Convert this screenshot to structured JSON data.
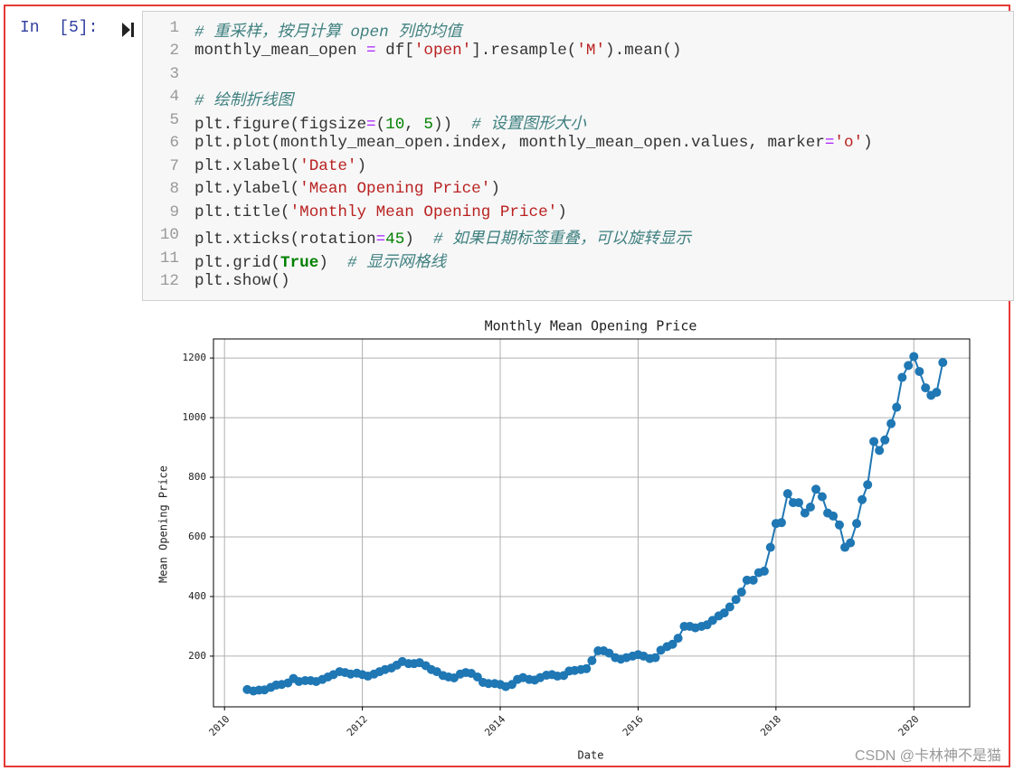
{
  "cell": {
    "prompt": "In  [5]:",
    "lines": [
      {
        "number": 1,
        "segments": [
          {
            "text": "# 重采样，按月计算 open 列的均值",
            "style": "comment"
          }
        ]
      },
      {
        "number": 2,
        "segments": [
          {
            "text": "monthly_mean_open ",
            "style": "plain"
          },
          {
            "text": "=",
            "style": "operator"
          },
          {
            "text": " df[",
            "style": "plain"
          },
          {
            "text": "'open'",
            "style": "string"
          },
          {
            "text": "].resample(",
            "style": "plain"
          },
          {
            "text": "'M'",
            "style": "string"
          },
          {
            "text": ").mean()",
            "style": "plain"
          }
        ]
      },
      {
        "number": 3,
        "segments": []
      },
      {
        "number": 4,
        "segments": [
          {
            "text": "# 绘制折线图",
            "style": "comment"
          }
        ]
      },
      {
        "number": 5,
        "segments": [
          {
            "text": "plt.figure(figsize",
            "style": "plain"
          },
          {
            "text": "=",
            "style": "operator"
          },
          {
            "text": "(",
            "style": "plain"
          },
          {
            "text": "10",
            "style": "number"
          },
          {
            "text": ", ",
            "style": "plain"
          },
          {
            "text": "5",
            "style": "number"
          },
          {
            "text": "))  ",
            "style": "plain"
          },
          {
            "text": "# 设置图形大小",
            "style": "comment"
          }
        ]
      },
      {
        "number": 6,
        "segments": [
          {
            "text": "plt.plot(monthly_mean_open.index, monthly_mean_open.values, marker",
            "style": "plain"
          },
          {
            "text": "=",
            "style": "operator"
          },
          {
            "text": "'o'",
            "style": "string"
          },
          {
            "text": ")",
            "style": "plain"
          }
        ]
      },
      {
        "number": 7,
        "segments": [
          {
            "text": "plt.xlabel(",
            "style": "plain"
          },
          {
            "text": "'Date'",
            "style": "string"
          },
          {
            "text": ")",
            "style": "plain"
          }
        ]
      },
      {
        "number": 8,
        "segments": [
          {
            "text": "plt.ylabel(",
            "style": "plain"
          },
          {
            "text": "'Mean Opening Price'",
            "style": "string"
          },
          {
            "text": ")",
            "style": "plain"
          }
        ]
      },
      {
        "number": 9,
        "segments": [
          {
            "text": "plt.title(",
            "style": "plain"
          },
          {
            "text": "'Monthly Mean Opening Price'",
            "style": "string"
          },
          {
            "text": ")",
            "style": "plain"
          }
        ]
      },
      {
        "number": 10,
        "segments": [
          {
            "text": "plt.xticks(rotation",
            "style": "plain"
          },
          {
            "text": "=",
            "style": "operator"
          },
          {
            "text": "45",
            "style": "number"
          },
          {
            "text": ")  ",
            "style": "plain"
          },
          {
            "text": "# 如果日期标签重叠，可以旋转显示",
            "style": "comment"
          }
        ]
      },
      {
        "number": 11,
        "segments": [
          {
            "text": "plt.grid(",
            "style": "plain"
          },
          {
            "text": "True",
            "style": "keyword"
          },
          {
            "text": ")  ",
            "style": "plain"
          },
          {
            "text": "# 显示网格线",
            "style": "comment"
          }
        ]
      },
      {
        "number": 12,
        "segments": [
          {
            "text": "plt.show()",
            "style": "plain"
          }
        ]
      }
    ]
  },
  "chart_data": {
    "type": "line",
    "title": "Monthly Mean Opening Price",
    "xlabel": "Date",
    "ylabel": "Mean Opening Price",
    "color": "#1f77b4",
    "grid": true,
    "x": [
      2010.33,
      2010.42,
      2010.5,
      2010.58,
      2010.67,
      2010.75,
      2010.83,
      2010.92,
      2011,
      2011.08,
      2011.17,
      2011.25,
      2011.33,
      2011.42,
      2011.5,
      2011.58,
      2011.67,
      2011.75,
      2011.83,
      2011.92,
      2012,
      2012.08,
      2012.17,
      2012.25,
      2012.33,
      2012.42,
      2012.5,
      2012.58,
      2012.67,
      2012.75,
      2012.83,
      2012.92,
      2013,
      2013.08,
      2013.17,
      2013.25,
      2013.33,
      2013.42,
      2013.5,
      2013.58,
      2013.67,
      2013.75,
      2013.83,
      2013.92,
      2014,
      2014.08,
      2014.17,
      2014.25,
      2014.33,
      2014.42,
      2014.5,
      2014.58,
      2014.67,
      2014.75,
      2014.83,
      2014.92,
      2015,
      2015.08,
      2015.17,
      2015.25,
      2015.33,
      2015.42,
      2015.5,
      2015.58,
      2015.67,
      2015.75,
      2015.83,
      2015.92,
      2016,
      2016.08,
      2016.17,
      2016.25,
      2016.33,
      2016.42,
      2016.5,
      2016.58,
      2016.67,
      2016.75,
      2016.83,
      2016.92,
      2017,
      2017.08,
      2017.17,
      2017.25,
      2017.33,
      2017.42,
      2017.5,
      2017.58,
      2017.67,
      2017.75,
      2017.83,
      2017.92,
      2018,
      2018.08,
      2018.17,
      2018.25,
      2018.33,
      2018.42,
      2018.5,
      2018.58,
      2018.67,
      2018.75,
      2018.83,
      2018.92,
      2019,
      2019.08,
      2019.17,
      2019.25,
      2019.33,
      2019.42,
      2019.5,
      2019.58,
      2019.67,
      2019.75,
      2019.83,
      2019.92,
      2020,
      2020.08,
      2020.17,
      2020.25,
      2020.33,
      2020.42
    ],
    "values": [
      88,
      83,
      86,
      87,
      95,
      103,
      105,
      110,
      125,
      115,
      118,
      118,
      115,
      122,
      130,
      138,
      148,
      145,
      140,
      143,
      138,
      133,
      140,
      148,
      155,
      160,
      170,
      182,
      175,
      175,
      178,
      168,
      155,
      148,
      135,
      130,
      127,
      140,
      145,
      142,
      130,
      112,
      108,
      108,
      105,
      98,
      105,
      122,
      128,
      122,
      120,
      128,
      136,
      138,
      133,
      135,
      150,
      152,
      155,
      158,
      185,
      218,
      218,
      210,
      195,
      190,
      195,
      200,
      205,
      200,
      192,
      195,
      220,
      232,
      240,
      260,
      300,
      300,
      295,
      300,
      305,
      320,
      335,
      345,
      365,
      390,
      415,
      455,
      455,
      480,
      485,
      565,
      645,
      648,
      745,
      715,
      715,
      680,
      700,
      760,
      735,
      680,
      670,
      640,
      565,
      580,
      645,
      725,
      775,
      920,
      890,
      925,
      980,
      1035,
      1135,
      1175,
      1205,
      1155,
      1100,
      1075,
      1085,
      1185
    ],
    "xlim": [
      2009.84,
      2020.81
    ],
    "xticks": [
      2010,
      2012,
      2014,
      2016,
      2018,
      2020
    ],
    "ylim": [
      30,
      1264
    ],
    "yticks": [
      200,
      400,
      600,
      800,
      1000,
      1200
    ]
  },
  "watermark": "CSDN @卡林神不是猫"
}
